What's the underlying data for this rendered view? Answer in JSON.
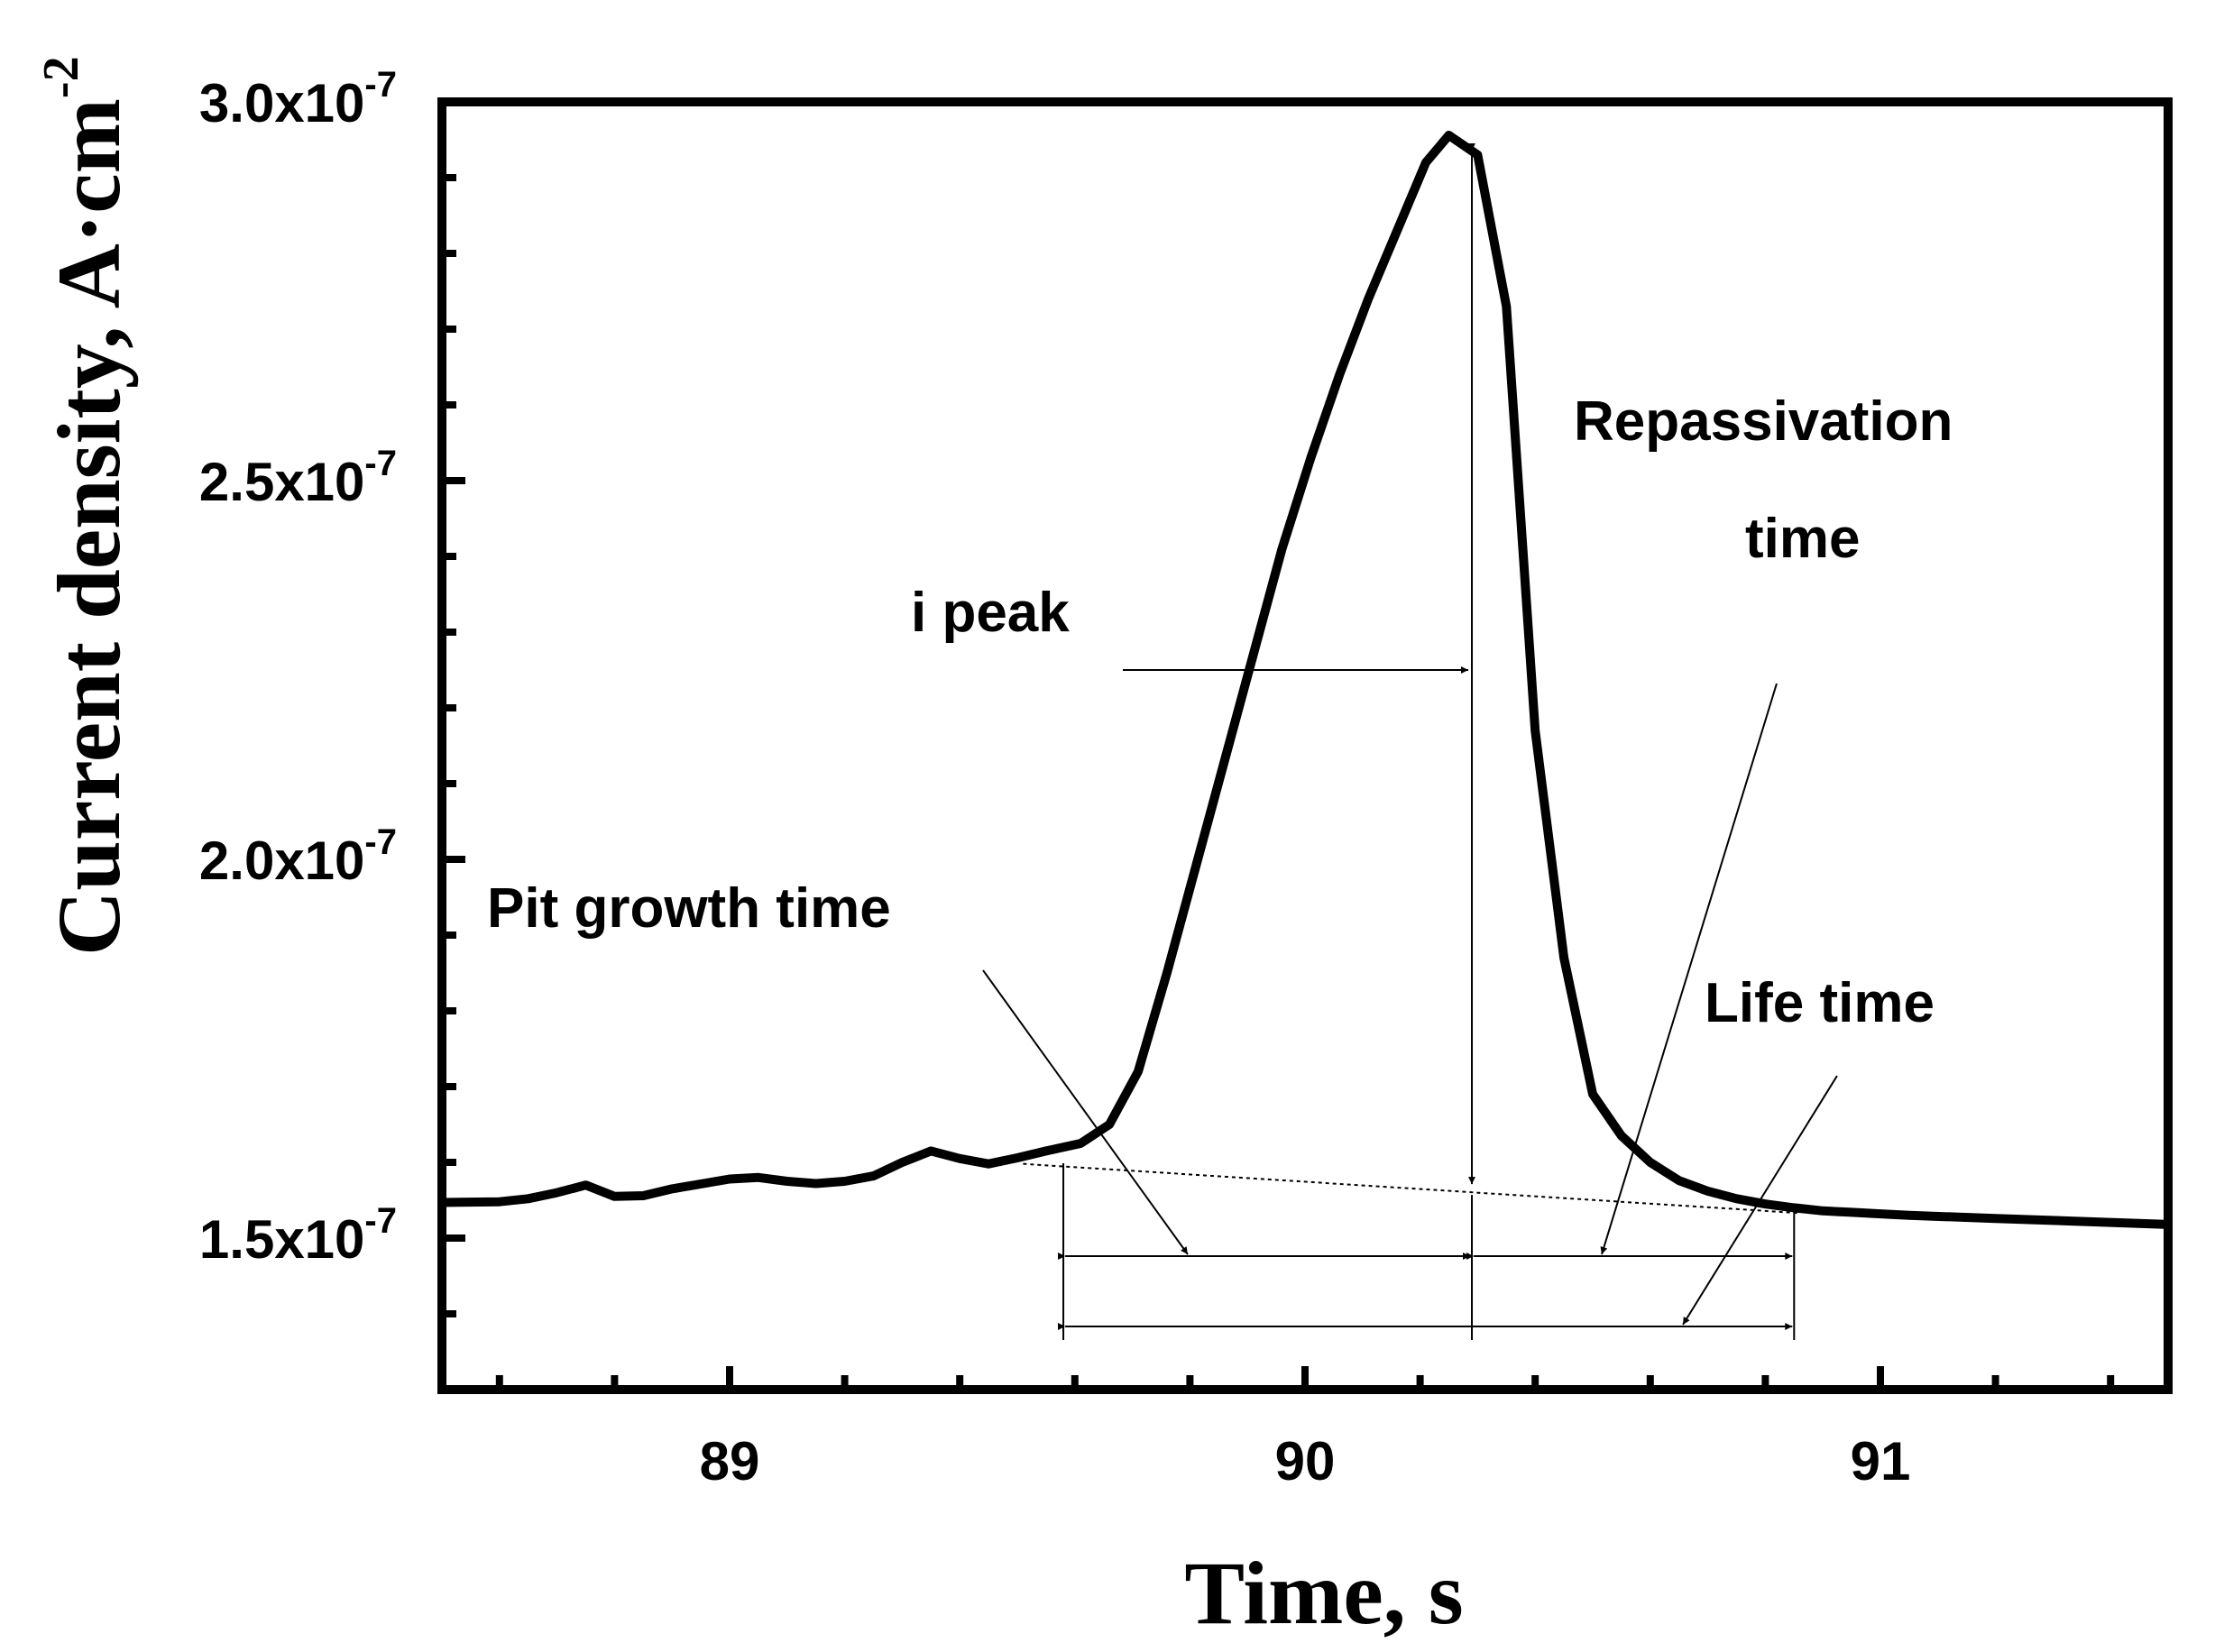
{
  "chart_data": {
    "type": "line",
    "xlabel": "Time, s",
    "ylabel": "Current density, A·cm",
    "ylabel_exponent": "-2",
    "xlim": [
      88.5,
      91.5
    ],
    "ylim": [
      1.3e-07,
      3e-07
    ],
    "grid": false,
    "legend": "none",
    "x_ticks": [
      {
        "value": 89,
        "label": "89"
      },
      {
        "value": 90,
        "label": "90"
      },
      {
        "value": 91,
        "label": "91"
      }
    ],
    "y_ticks": [
      {
        "value": 1.5e-07,
        "mantissa": "1.5x10",
        "exponent": "-7"
      },
      {
        "value": 2e-07,
        "mantissa": "2.0x10",
        "exponent": "-7"
      },
      {
        "value": 2.5e-07,
        "mantissa": "2.5x10",
        "exponent": "-7"
      },
      {
        "value": 3e-07,
        "mantissa": "3.0x10",
        "exponent": "-7"
      }
    ],
    "series": [
      {
        "color": "#000000",
        "x": [
          88.5,
          88.6,
          88.65,
          88.7,
          88.75,
          88.8,
          88.85,
          88.9,
          89.0,
          89.05,
          89.1,
          89.15,
          89.2,
          89.25,
          89.3,
          89.35,
          89.4,
          89.45,
          89.5,
          89.55,
          89.61,
          89.66,
          89.71,
          89.76,
          89.81,
          89.86,
          89.91,
          89.96,
          90.01,
          90.06,
          90.11,
          90.16,
          90.21,
          90.25,
          90.3,
          90.35,
          90.4,
          90.45,
          90.5,
          90.55,
          90.6,
          90.65,
          90.7,
          90.75,
          90.8,
          90.85,
          90.9,
          90.95,
          91.0,
          91.05,
          91.2,
          91.5
        ],
        "values": [
          1.547e-07,
          1.548e-07,
          1.552e-07,
          1.56e-07,
          1.57e-07,
          1.555e-07,
          1.556e-07,
          1.565e-07,
          1.578e-07,
          1.58e-07,
          1.575e-07,
          1.572e-07,
          1.575e-07,
          1.582e-07,
          1.6e-07,
          1.615e-07,
          1.605e-07,
          1.598e-07,
          1.606e-07,
          1.615e-07,
          1.625e-07,
          1.65e-07,
          1.72e-07,
          1.85e-07,
          1.99e-07,
          2.13e-07,
          2.27e-07,
          2.41e-07,
          2.53e-07,
          2.64e-07,
          2.74e-07,
          2.83e-07,
          2.92e-07,
          2.956e-07,
          2.93e-07,
          2.73e-07,
          2.17e-07,
          1.87e-07,
          1.69e-07,
          1.635e-07,
          1.6e-07,
          1.576e-07,
          1.562e-07,
          1.552e-07,
          1.545e-07,
          1.54e-07,
          1.536e-07,
          1.534e-07,
          1.532e-07,
          1.53e-07,
          1.526e-07,
          1.518e-07
        ]
      }
    ],
    "baseline": {
      "x": [
        89.51,
        90.86
      ],
      "values": [
        1.598e-07,
        1.533e-07
      ],
      "style": "dotted"
    },
    "annotations": {
      "i_peak": "i peak",
      "repassivation_line1": "Repassivation",
      "repassivation_line2": "time",
      "pit_growth": "Pit growth time",
      "life_time": "Life time"
    },
    "markers": {
      "t_start": 89.58,
      "t_peak": 90.29,
      "t_end": 90.85,
      "peak_value": 2.95e-07,
      "peak_base_value": 1.557e-07
    }
  }
}
